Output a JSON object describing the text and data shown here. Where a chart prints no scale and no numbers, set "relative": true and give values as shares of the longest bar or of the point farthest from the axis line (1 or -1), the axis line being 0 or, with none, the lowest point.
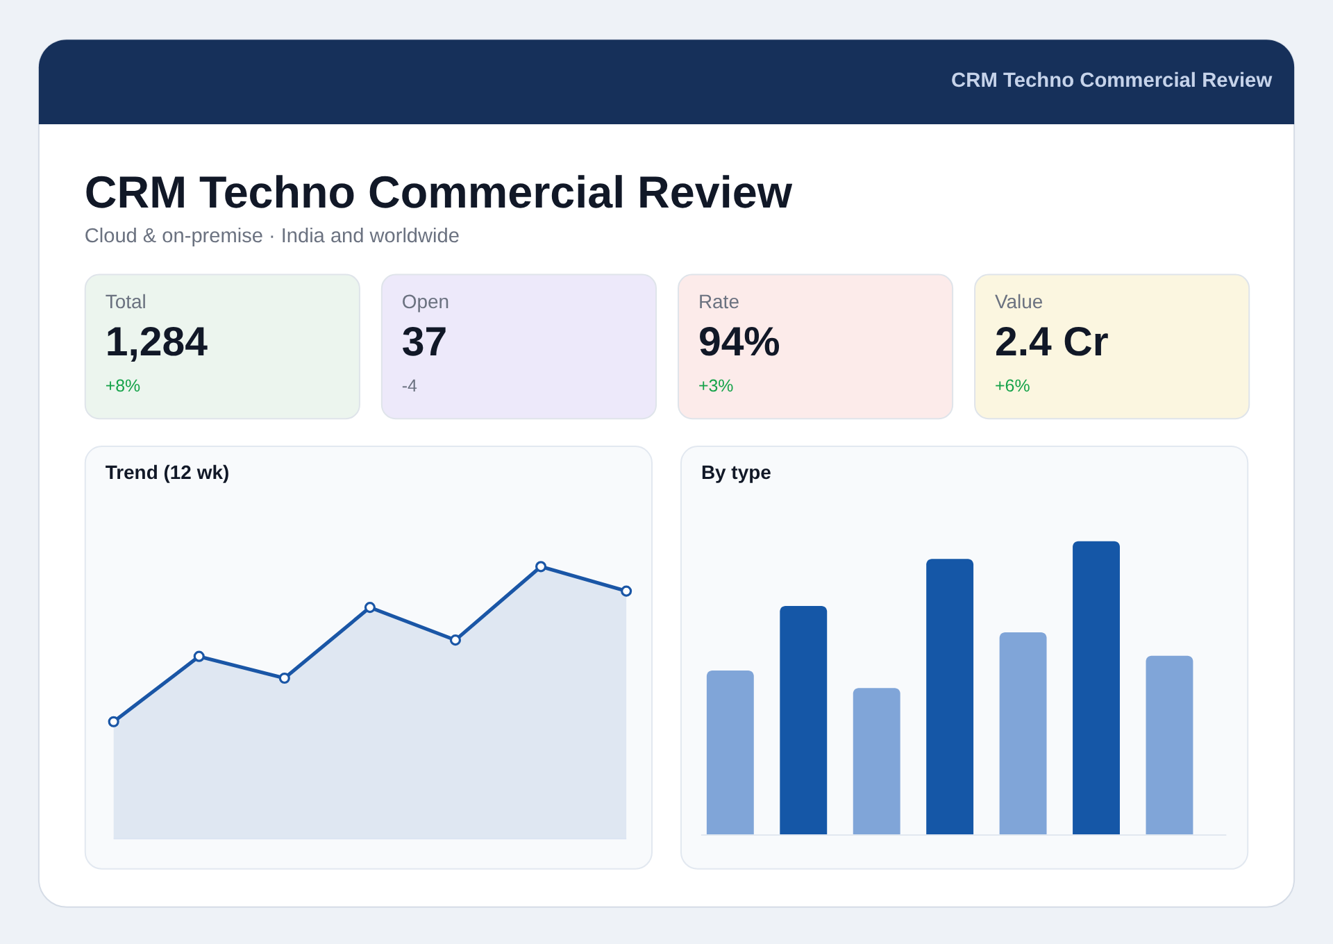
{
  "chart_data": [
    {
      "type": "other",
      "title": "CRM Techno Commercial Review",
      "subtitle": "Cloud & on-premise · India and worldwide",
      "annotations": [
        "CRM Techno Commercial Review"
      ]
    },
    {
      "type": "other",
      "title": "Total",
      "annotations": [
        "1,284",
        "+8%"
      ],
      "color": "#ecf5ee",
      "colors": [
        "#111827",
        "#16a34a"
      ]
    },
    {
      "type": "other",
      "title": "Open",
      "annotations": [
        "37",
        "-4"
      ],
      "color": "#ede9fa",
      "colors": [
        "#111827",
        "#6b7280"
      ]
    },
    {
      "type": "other",
      "title": "Rate",
      "annotations": [
        "94%",
        "+3%"
      ],
      "color": "#fcebea",
      "colors": [
        "#111827",
        "#16a34a"
      ]
    },
    {
      "type": "other",
      "title": "Value",
      "annotations": [
        "2.4 Cr",
        "+6%"
      ],
      "color": "#fbf6e0",
      "colors": [
        "#111827",
        "#16a34a"
      ]
    },
    {
      "type": "area",
      "title": "Trend (12 wk)",
      "categories": [
        null,
        null,
        null,
        null,
        null,
        null,
        null
      ],
      "relative": true,
      "marker": "circle",
      "line_style": "solid",
      "series": [
        {
          "color": "#1a56a6",
          "values": [
            0.43,
            0.67,
            0.59,
            0.85,
            0.73,
            1,
            0.91
          ]
        }
      ]
    },
    {
      "type": "bar",
      "title": "By type",
      "categories": [
        null,
        null,
        null,
        null,
        null,
        null,
        null
      ],
      "relative": true,
      "values": [
        0.56,
        0.78,
        0.5,
        0.94,
        0.69,
        1,
        0.61
      ],
      "colors": [
        "#80a5d8",
        "#1557a7",
        "#80a5d8",
        "#1557a7",
        "#80a5d8",
        "#1557a7",
        "#80a5d8"
      ]
    }
  ]
}
